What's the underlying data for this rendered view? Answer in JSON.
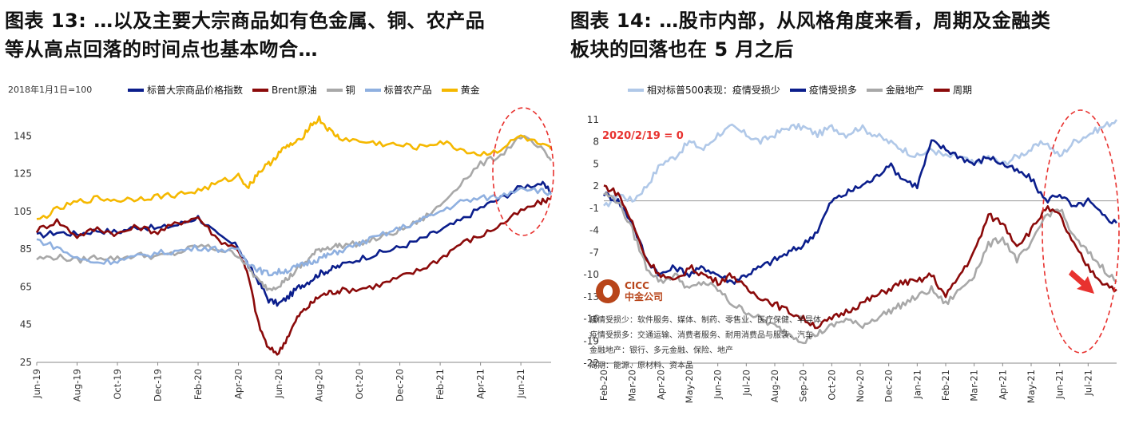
{
  "left": {
    "title_line1": "图表 13: …以及主要大宗商品如有色金属、铜、农产品",
    "title_line2": "等从高点回落的时间点也基本吻合…",
    "note": "2018年1月1日=100",
    "legend": [
      {
        "name": "标普大宗商品价格指数",
        "color": "#0b1e8c"
      },
      {
        "name": "Brent原油",
        "color": "#8b0a0a"
      },
      {
        "name": "铜",
        "color": "#a8a8a8"
      },
      {
        "name": "标普农产品",
        "color": "#8fb0e0"
      },
      {
        "name": "黄金",
        "color": "#f5b800"
      }
    ]
  },
  "right": {
    "title_line1": "图表 14: …股市内部，从风格角度来看，周期及金融类",
    "title_line2": "板块的回落也在 5 月之后",
    "annotation": "2020/2/19 = 0",
    "legend": [
      {
        "name": "相对标普500表现：疫情受损少",
        "color": "#b0c8e8"
      },
      {
        "name": "疫情受损多",
        "color": "#0b1e8c"
      },
      {
        "name": "金融地产",
        "color": "#a8a8a8"
      },
      {
        "name": "周期",
        "color": "#8b0a0a"
      }
    ],
    "logo_en": "CICC",
    "logo_cn": "中金公司",
    "defs": [
      "疫情受损少：软件服务、媒体、制药、零售业、医疗保健、半导体",
      "疫情受损多：交通运输、消费者服务、耐用消费品与服装、汽车",
      "金融地产：银行、多元金融、保险、地产",
      "周期：能源、原材料、资本品"
    ]
  },
  "chart_data": [
    {
      "type": "line",
      "title": "",
      "ylim": [
        25,
        160
      ],
      "yticks": [
        25,
        45,
        65,
        85,
        105,
        125,
        145
      ],
      "x_range": [
        "2019-06",
        "2021-07"
      ],
      "x_ticks": [
        "Jun-19",
        "Aug-19",
        "Oct-19",
        "Dec-19",
        "Feb-20",
        "Apr-20",
        "Jun-20",
        "Aug-20",
        "Oct-20",
        "Dec-20",
        "Feb-21",
        "Apr-21",
        "Jun-21"
      ],
      "grid": false,
      "legend_position": "top",
      "series": [
        {
          "name": "标普大宗商品价格指数",
          "x": [
            0,
            1,
            2,
            3,
            4,
            5,
            6,
            7,
            8,
            9,
            10,
            10.5,
            11,
            11.5,
            12,
            12.5,
            13,
            13.5,
            14,
            14.5,
            15,
            16,
            17,
            18,
            19,
            20,
            21,
            22,
            23,
            24,
            25,
            25.5
          ],
          "values": [
            92,
            94,
            93,
            95,
            94,
            97,
            96,
            98,
            102,
            92,
            86,
            76,
            68,
            58,
            56,
            60,
            65,
            68,
            72,
            74,
            76,
            80,
            83,
            86,
            90,
            95,
            100,
            107,
            112,
            118,
            120,
            115
          ]
        },
        {
          "name": "Brent原油",
          "x": [
            0,
            1,
            2,
            3,
            4,
            5,
            6,
            7,
            8,
            9,
            10,
            10.5,
            11,
            11.5,
            12,
            12.5,
            13,
            13.5,
            14,
            14.5,
            15,
            16,
            17,
            18,
            19,
            20,
            21,
            22,
            23,
            24,
            25,
            25.5
          ],
          "values": [
            95,
            100,
            92,
            96,
            93,
            97,
            94,
            99,
            102,
            90,
            85,
            70,
            45,
            32,
            30,
            40,
            50,
            55,
            60,
            62,
            63,
            64,
            66,
            70,
            74,
            80,
            88,
            92,
            98,
            105,
            110,
            112
          ]
        },
        {
          "name": "铜",
          "x": [
            0,
            1,
            2,
            3,
            4,
            5,
            6,
            7,
            8,
            9,
            10,
            10.5,
            11,
            11.5,
            12,
            12.5,
            13,
            13.5,
            14,
            14.5,
            15,
            16,
            17,
            18,
            19,
            20,
            21,
            22,
            23,
            24,
            25,
            25.5
          ],
          "values": [
            80,
            81,
            79,
            81,
            80,
            82,
            81,
            83,
            87,
            85,
            82,
            75,
            68,
            64,
            66,
            70,
            75,
            80,
            85,
            86,
            87,
            88,
            91,
            95,
            100,
            108,
            120,
            130,
            135,
            145,
            138,
            132
          ]
        },
        {
          "name": "标普农产品",
          "x": [
            0,
            1,
            2,
            3,
            4,
            5,
            6,
            7,
            8,
            9,
            10,
            10.5,
            11,
            11.5,
            12,
            12.5,
            13,
            13.5,
            14,
            14.5,
            15,
            16,
            17,
            18,
            19,
            20,
            21,
            22,
            23,
            24,
            25,
            25.5
          ],
          "values": [
            90,
            86,
            80,
            78,
            79,
            81,
            83,
            84,
            86,
            85,
            84,
            78,
            74,
            72,
            73,
            74,
            76,
            78,
            80,
            82,
            84,
            88,
            92,
            96,
            100,
            105,
            110,
            112,
            113,
            118,
            116,
            114
          ]
        },
        {
          "name": "黄金",
          "x": [
            0,
            1,
            2,
            3,
            4,
            5,
            6,
            7,
            8,
            9,
            10,
            10.5,
            11,
            11.5,
            12,
            12.5,
            13,
            13.5,
            14,
            14.5,
            15,
            16,
            17,
            18,
            19,
            20,
            21,
            22,
            23,
            24,
            25,
            25.5
          ],
          "values": [
            100,
            106,
            110,
            112,
            111,
            112,
            113,
            114,
            116,
            120,
            124,
            118,
            126,
            130,
            136,
            140,
            142,
            150,
            154,
            148,
            144,
            142,
            141,
            140,
            139,
            142,
            138,
            135,
            138,
            145,
            140,
            138
          ]
        }
      ]
    },
    {
      "type": "line",
      "title": "",
      "ylim": [
        -22,
        11
      ],
      "yticks": [
        11,
        8,
        5,
        2,
        -1,
        -4,
        -7,
        -10,
        -13,
        -16,
        -19,
        -22
      ],
      "x_range": [
        "2020-02",
        "2021-07"
      ],
      "x_ticks": [
        "Feb-20",
        "Mar-20",
        "Apr-20",
        "May-20",
        "Jun-20",
        "Jul-20",
        "Aug-20",
        "Sep-20",
        "Oct-20",
        "Nov-20",
        "Dec-20",
        "Jan-21",
        "Feb-21",
        "Mar-21",
        "Apr-21",
        "May-21",
        "Jun-21",
        "Jul-21"
      ],
      "grid": false,
      "legend_position": "top",
      "series": [
        {
          "name": "相对标普500表现：疫情受损少",
          "x": [
            0,
            0.5,
            1,
            1.5,
            2,
            2.5,
            3,
            3.5,
            4,
            4.5,
            5,
            5.5,
            6,
            6.5,
            7,
            7.5,
            8,
            8.5,
            9,
            9.5,
            10,
            10.5,
            11,
            11.5,
            12,
            12.5,
            13,
            13.5,
            14,
            14.5,
            15,
            15.5,
            16,
            16.5,
            17,
            17.5,
            18
          ],
          "values": [
            -1,
            1,
            0,
            2,
            5,
            6,
            8,
            7,
            9,
            10,
            9,
            8,
            9,
            10,
            10,
            9,
            10,
            9,
            10,
            9,
            8,
            7,
            6,
            7,
            6,
            6,
            5,
            6,
            5,
            6,
            7,
            8,
            6,
            8,
            9,
            10,
            11
          ]
        },
        {
          "name": "疫情受损多",
          "x": [
            0,
            0.5,
            1,
            1.5,
            2,
            2.5,
            3,
            3.5,
            4,
            4.5,
            5,
            5.5,
            6,
            6.5,
            7,
            7.5,
            8,
            8.5,
            9,
            9.5,
            10,
            10.5,
            11,
            11.5,
            12,
            12.5,
            13,
            13.5,
            14,
            14.5,
            15,
            15.5,
            16,
            16.5,
            17,
            17.5,
            18
          ],
          "values": [
            1,
            0,
            -3,
            -8,
            -10,
            -9,
            -10,
            -9,
            -10,
            -11,
            -10,
            -9,
            -8,
            -7,
            -6,
            -4,
            0,
            1,
            2,
            3,
            5,
            3,
            2,
            8,
            7,
            6,
            5,
            6,
            5,
            4,
            3,
            0,
            1,
            -1,
            0,
            -2,
            -3
          ]
        },
        {
          "name": "金融地产",
          "x": [
            0,
            0.5,
            1,
            1.5,
            2,
            2.5,
            3,
            3.5,
            4,
            4.5,
            5,
            5.5,
            6,
            6.5,
            7,
            7.5,
            8,
            8.5,
            9,
            9.5,
            10,
            10.5,
            11,
            11.5,
            12,
            12.5,
            13,
            13.5,
            14,
            14.5,
            15,
            15.5,
            16,
            16.5,
            17,
            17.5,
            18
          ],
          "values": [
            1,
            0,
            -4,
            -9,
            -11,
            -10,
            -12,
            -11,
            -12,
            -14,
            -15,
            -16,
            -17,
            -18,
            -19,
            -18,
            -17,
            -16,
            -17,
            -16,
            -15,
            -14,
            -13,
            -12,
            -14,
            -12,
            -10,
            -6,
            -5,
            -8,
            -6,
            -2,
            -1,
            -5,
            -7,
            -9,
            -11
          ]
        },
        {
          "name": "周期",
          "x": [
            0,
            0.5,
            1,
            1.5,
            2,
            2.5,
            3,
            3.5,
            4,
            4.5,
            5,
            5.5,
            6,
            6.5,
            7,
            7.5,
            8,
            8.5,
            9,
            9.5,
            10,
            10.5,
            11,
            11.5,
            12,
            12.5,
            13,
            13.5,
            14,
            14.5,
            15,
            15.5,
            16,
            16.5,
            17,
            17.5,
            18
          ],
          "values": [
            2,
            1,
            -3,
            -8,
            -10,
            -11,
            -9,
            -10,
            -11,
            -10,
            -12,
            -13,
            -14,
            -15,
            -16,
            -17,
            -16,
            -15,
            -14,
            -13,
            -12,
            -11,
            -11,
            -10,
            -13,
            -10,
            -7,
            -2,
            -3,
            -6,
            -4,
            -1,
            -2,
            -6,
            -9,
            -11,
            -12
          ]
        }
      ]
    }
  ]
}
